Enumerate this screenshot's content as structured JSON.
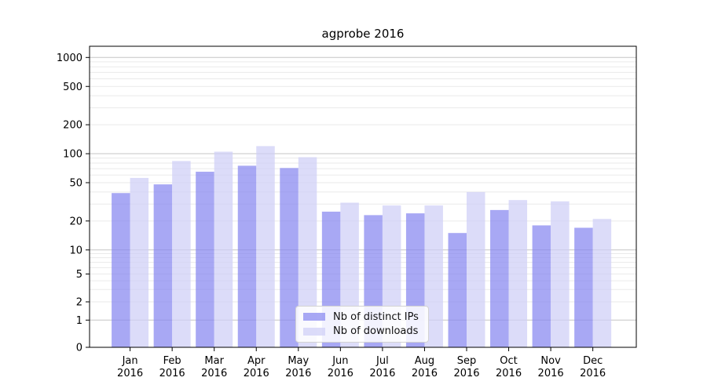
{
  "chart_data": {
    "type": "bar",
    "title": "agprobe 2016",
    "categories": [
      {
        "month": "Jan",
        "year": "2016"
      },
      {
        "month": "Feb",
        "year": "2016"
      },
      {
        "month": "Mar",
        "year": "2016"
      },
      {
        "month": "Apr",
        "year": "2016"
      },
      {
        "month": "May",
        "year": "2016"
      },
      {
        "month": "Jun",
        "year": "2016"
      },
      {
        "month": "Jul",
        "year": "2016"
      },
      {
        "month": "Aug",
        "year": "2016"
      },
      {
        "month": "Sep",
        "year": "2016"
      },
      {
        "month": "Oct",
        "year": "2016"
      },
      {
        "month": "Nov",
        "year": "2016"
      },
      {
        "month": "Dec",
        "year": "2016"
      }
    ],
    "series": [
      {
        "name": "Nb of distinct IPs",
        "color": "rgba(134,134,240,0.72)",
        "values": [
          39,
          48,
          65,
          75,
          71,
          25,
          23,
          24,
          15,
          26,
          18,
          17
        ]
      },
      {
        "name": "Nb of downloads",
        "color": "rgba(206,206,247,0.72)",
        "values": [
          56,
          84,
          105,
          120,
          92,
          31,
          29,
          29,
          40,
          33,
          32,
          21
        ]
      }
    ],
    "y_axis": {
      "scale": "symlog",
      "tick_values": [
        0,
        1,
        2,
        5,
        10,
        20,
        50,
        100,
        200,
        500,
        1000
      ],
      "tick_labels": [
        "0",
        "1",
        "2",
        "5",
        "10",
        "20",
        "50",
        "100",
        "200",
        "500",
        "1000"
      ],
      "range": [
        0,
        1310
      ]
    },
    "legend": {
      "position": "lower center"
    },
    "grid": true,
    "colors": {
      "grid_minor": "#eaeaea",
      "grid_major": "#c6c6c6",
      "axis": "#000000"
    }
  }
}
